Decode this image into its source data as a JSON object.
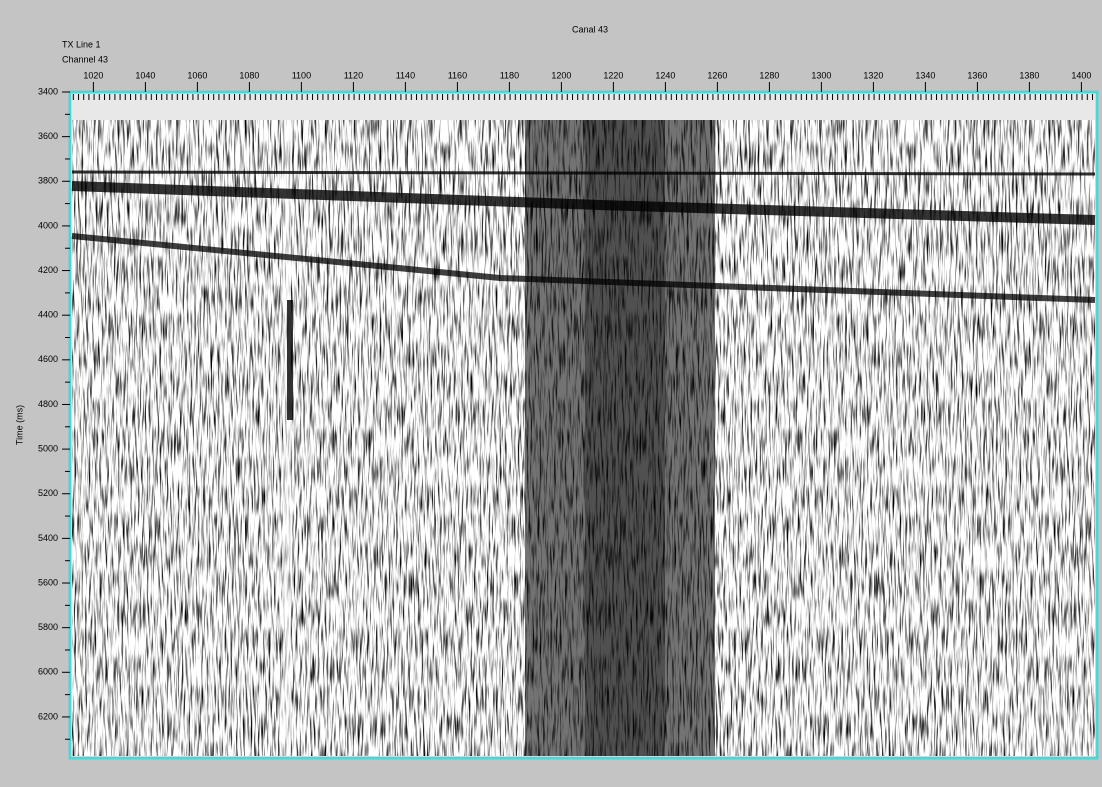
{
  "chart_data": {
    "type": "seismic",
    "title": "Canal 43",
    "line_label": "TX Line 1",
    "channel_label": "Channel 43",
    "ylabel": "Time (ms)",
    "xlim": [
      1011,
      1406
    ],
    "xticks": [
      1020,
      1040,
      1060,
      1080,
      1100,
      1120,
      1140,
      1160,
      1180,
      1200,
      1220,
      1240,
      1260,
      1280,
      1300,
      1320,
      1340,
      1360,
      1380,
      1400
    ],
    "ylim": [
      3400,
      6384
    ],
    "yticks": [
      3400,
      3600,
      3800,
      4000,
      4200,
      4400,
      4600,
      4800,
      5000,
      5200,
      5400,
      5600,
      5800,
      6000,
      6200
    ],
    "yminorticks": [
      3500,
      3700,
      3900,
      4100,
      4300,
      4500,
      4700,
      4900,
      5100,
      5300,
      5500,
      5700,
      5900,
      6100,
      6300
    ],
    "frame_color": "#4ed6d6"
  }
}
